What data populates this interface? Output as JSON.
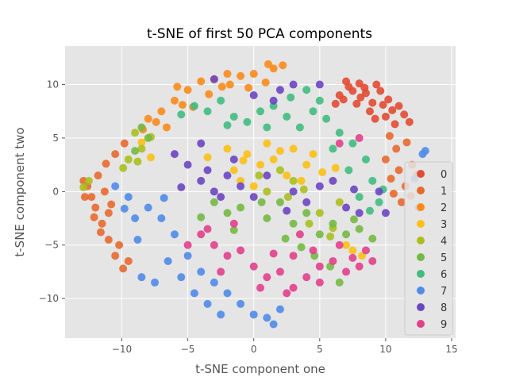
{
  "chart_data": {
    "type": "scatter",
    "title": "t-SNE of first 50 PCA components",
    "xlabel": "t-SNE component one",
    "ylabel": "t-SNE component two",
    "xlim": [
      -14.3,
      15.3
    ],
    "ylim": [
      -13.7,
      13.6
    ],
    "xticks": [
      -10,
      -5,
      0,
      5,
      10,
      15
    ],
    "xtick_labels": [
      "−10",
      "−5",
      "0",
      "5",
      "10",
      "15"
    ],
    "yticks": [
      -10,
      -5,
      0,
      5,
      10
    ],
    "ytick_labels": [
      "−10",
      "−5",
      "0",
      "5",
      "10"
    ],
    "grid": true,
    "background": "#e5e5e5",
    "legend_position": "right",
    "series": [
      {
        "name": "0",
        "color": "#e24a33",
        "points": [
          [
            6.5,
            9.0
          ],
          [
            7.2,
            9.8
          ],
          [
            8.0,
            10.1
          ],
          [
            8.5,
            9.2
          ],
          [
            9.0,
            8.3
          ],
          [
            9.6,
            9.4
          ],
          [
            10.2,
            8.6
          ],
          [
            7.8,
            8.2
          ],
          [
            6.8,
            8.6
          ],
          [
            8.8,
            7.5
          ],
          [
            10.5,
            7.6
          ],
          [
            11.0,
            8.0
          ],
          [
            7.5,
            9.4
          ],
          [
            9.3,
            10.0
          ],
          [
            8.1,
            8.8
          ],
          [
            10.0,
            7.0
          ],
          [
            6.2,
            8.2
          ],
          [
            9.8,
            8.1
          ],
          [
            11.4,
            7.2
          ],
          [
            10.7,
            6.3
          ],
          [
            9.2,
            6.8
          ],
          [
            8.4,
            9.7
          ],
          [
            7.0,
            10.3
          ],
          [
            11.8,
            6.5
          ]
        ]
      },
      {
        "name": "1",
        "color": "#e8692f",
        "points": [
          [
            -12.6,
            0.5
          ],
          [
            -12.0,
            -1.5
          ],
          [
            -11.5,
            -3.0
          ],
          [
            -11.0,
            -4.5
          ],
          [
            -10.5,
            -6.0
          ],
          [
            -11.8,
            1.5
          ],
          [
            -12.3,
            -0.5
          ],
          [
            -11.0,
            -2.0
          ],
          [
            -10.2,
            -5.0
          ],
          [
            -12.8,
            -0.5
          ],
          [
            -11.3,
            0.0
          ],
          [
            -10.5,
            3.5
          ],
          [
            -9.8,
            4.5
          ],
          [
            -9.5,
            -6.5
          ],
          [
            -11.6,
            -3.8
          ],
          [
            -12.9,
            1.0
          ],
          [
            -10.8,
            -1.2
          ],
          [
            -11.2,
            2.6
          ],
          [
            -9.9,
            -7.2
          ],
          [
            -12.1,
            -2.4
          ],
          [
            10.3,
            5.2
          ],
          [
            10.8,
            4.0
          ],
          [
            11.0,
            2.0
          ],
          [
            11.5,
            0.5
          ],
          [
            10.0,
            3.0
          ],
          [
            12.0,
            2.5
          ],
          [
            11.2,
            -1.0
          ],
          [
            10.6,
            -0.2
          ],
          [
            11.6,
            4.6
          ],
          [
            10.4,
            1.2
          ],
          [
            12.4,
            1.6
          ],
          [
            11.9,
            -0.4
          ]
        ]
      },
      {
        "name": "2",
        "color": "#fb8a19",
        "points": [
          [
            -5.0,
            9.5
          ],
          [
            -4.0,
            10.3
          ],
          [
            -3.0,
            10.5
          ],
          [
            -2.0,
            11.0
          ],
          [
            -1.0,
            10.8
          ],
          [
            0.0,
            11.0
          ],
          [
            1.5,
            11.5
          ],
          [
            -6.0,
            8.5
          ],
          [
            -7.0,
            7.5
          ],
          [
            -8.0,
            6.8
          ],
          [
            -6.6,
            6.0
          ],
          [
            -5.4,
            8.1
          ],
          [
            -3.4,
            9.1
          ],
          [
            -2.4,
            9.8
          ],
          [
            0.9,
            10.2
          ],
          [
            -4.6,
            7.9
          ],
          [
            -7.4,
            6.5
          ],
          [
            -8.4,
            5.8
          ],
          [
            2.2,
            11.8
          ],
          [
            -1.8,
            10.0
          ],
          [
            -0.4,
            9.7
          ],
          [
            -5.8,
            9.8
          ],
          [
            1.1,
            11.9
          ]
        ]
      },
      {
        "name": "3",
        "color": "#fbc015",
        "points": [
          [
            -1.5,
            2.0
          ],
          [
            -0.5,
            3.5
          ],
          [
            0.5,
            2.5
          ],
          [
            1.5,
            3.0
          ],
          [
            -2.0,
            4.0
          ],
          [
            3.0,
            4.0
          ],
          [
            4.0,
            2.5
          ],
          [
            -1.0,
            1.0
          ],
          [
            0.0,
            0.5
          ],
          [
            2.5,
            1.5
          ],
          [
            4.5,
            3.5
          ],
          [
            -3.5,
            3.2
          ],
          [
            5.2,
            1.8
          ],
          [
            1.0,
            4.5
          ],
          [
            -0.8,
            2.9
          ],
          [
            3.6,
            1.0
          ],
          [
            2.0,
            3.8
          ],
          [
            7.5,
            -5.5
          ],
          [
            8.2,
            -6.0
          ],
          [
            7.0,
            -5.0
          ],
          [
            -8.5,
            4.6
          ],
          [
            -7.8,
            3.2
          ],
          [
            6.2,
            2.2
          ]
        ]
      },
      {
        "name": "4",
        "color": "#aabf1e",
        "points": [
          [
            -9.0,
            5.5
          ],
          [
            -8.5,
            4.0
          ],
          [
            -9.5,
            3.0
          ],
          [
            -12.5,
            1.0
          ],
          [
            -7.8,
            5.1
          ],
          [
            2.0,
            2.0
          ],
          [
            3.0,
            1.0
          ],
          [
            1.0,
            0.0
          ],
          [
            5.0,
            -2.0
          ],
          [
            6.5,
            -1.0
          ],
          [
            4.2,
            -3.0
          ],
          [
            5.8,
            -4.2
          ],
          [
            -9.9,
            2.2
          ],
          [
            -8.8,
            2.8
          ],
          [
            2.6,
            -0.5
          ],
          [
            0.4,
            1.5
          ],
          [
            3.8,
            0.2
          ],
          [
            6.0,
            -3.4
          ],
          [
            -12.9,
            0.4
          ]
        ]
      },
      {
        "name": "5",
        "color": "#74b943",
        "points": [
          [
            -8.5,
            6.0
          ],
          [
            -8.0,
            5.0
          ],
          [
            -9.0,
            3.8
          ],
          [
            -3.0,
            -1.0
          ],
          [
            -2.0,
            -2.0
          ],
          [
            -1.0,
            -1.5
          ],
          [
            1.0,
            -2.5
          ],
          [
            2.0,
            -1.0
          ],
          [
            3.0,
            -3.0
          ],
          [
            4.0,
            -2.0
          ],
          [
            5.0,
            -4.0
          ],
          [
            6.0,
            -3.0
          ],
          [
            7.0,
            -4.0
          ],
          [
            8.0,
            -3.5
          ],
          [
            4.6,
            -6.0
          ],
          [
            5.8,
            -7.0
          ],
          [
            6.5,
            -8.5
          ],
          [
            -1.5,
            -3.6
          ],
          [
            0.6,
            -1.0
          ],
          [
            2.4,
            -4.4
          ],
          [
            7.6,
            -2.6
          ],
          [
            9.0,
            -4.4
          ],
          [
            -4.0,
            -2.4
          ],
          [
            3.6,
            -5.2
          ]
        ]
      },
      {
        "name": "6",
        "color": "#3fbd80",
        "points": [
          [
            -4.5,
            8.0
          ],
          [
            -3.5,
            7.5
          ],
          [
            -2.5,
            8.5
          ],
          [
            -1.5,
            7.0
          ],
          [
            -0.5,
            6.5
          ],
          [
            0.5,
            7.5
          ],
          [
            1.5,
            8.0
          ],
          [
            2.5,
            7.0
          ],
          [
            3.5,
            6.0
          ],
          [
            4.5,
            7.5
          ],
          [
            5.5,
            6.8
          ],
          [
            6.5,
            5.5
          ],
          [
            7.5,
            4.5
          ],
          [
            8.5,
            3.0
          ],
          [
            9.0,
            1.0
          ],
          [
            8.0,
            -0.5
          ],
          [
            9.5,
            -1.0
          ],
          [
            4.0,
            9.5
          ],
          [
            5.0,
            8.5
          ],
          [
            -5.5,
            7.2
          ],
          [
            6.0,
            4.0
          ],
          [
            2.8,
            8.8
          ],
          [
            7.2,
            2.0
          ],
          [
            1.0,
            6.0
          ],
          [
            -2.0,
            6.2
          ],
          [
            9.8,
            0.2
          ],
          [
            8.8,
            -1.8
          ]
        ]
      },
      {
        "name": "7",
        "color": "#4f8be8",
        "points": [
          [
            -10.5,
            0.5
          ],
          [
            -9.5,
            -0.5
          ],
          [
            -9.0,
            -2.5
          ],
          [
            -8.0,
            -1.5
          ],
          [
            -7.0,
            -2.5
          ],
          [
            -6.0,
            -4.0
          ],
          [
            -5.0,
            -6.0
          ],
          [
            -4.0,
            -7.5
          ],
          [
            -3.0,
            -8.5
          ],
          [
            -2.0,
            -9.5
          ],
          [
            -1.0,
            -10.5
          ],
          [
            0.0,
            -11.5
          ],
          [
            1.0,
            -11.8
          ],
          [
            2.0,
            -11.0
          ],
          [
            -4.5,
            -9.5
          ],
          [
            -3.5,
            -10.5
          ],
          [
            -5.5,
            -8.0
          ],
          [
            -6.5,
            -6.5
          ],
          [
            -8.5,
            -8.0
          ],
          [
            -7.5,
            -8.5
          ],
          [
            -2.5,
            -11.5
          ],
          [
            1.5,
            -12.4
          ],
          [
            -8.8,
            -4.5
          ],
          [
            -6.8,
            -0.6
          ],
          [
            -9.8,
            -1.6
          ],
          [
            12.8,
            3.5
          ],
          [
            12.2,
            1.2
          ],
          [
            13.0,
            3.8
          ],
          [
            12.5,
            -1.5
          ]
        ]
      },
      {
        "name": "8",
        "color": "#6c45c2",
        "points": [
          [
            -4.0,
            1.0
          ],
          [
            -3.0,
            0.0
          ],
          [
            -2.0,
            1.5
          ],
          [
            -1.0,
            0.5
          ],
          [
            0.0,
            -0.5
          ],
          [
            1.0,
            1.5
          ],
          [
            -5.0,
            2.5
          ],
          [
            -3.5,
            2.0
          ],
          [
            -2.5,
            -0.5
          ],
          [
            3.0,
            0.0
          ],
          [
            4.0,
            -1.0
          ],
          [
            5.0,
            0.5
          ],
          [
            6.0,
            1.0
          ],
          [
            7.0,
            -1.5
          ],
          [
            8.0,
            -2.0
          ],
          [
            -6.0,
            3.5
          ],
          [
            -4.0,
            4.5
          ],
          [
            2.0,
            9.5
          ],
          [
            3.0,
            10.0
          ],
          [
            -3.0,
            10.5
          ],
          [
            5.0,
            10.0
          ],
          [
            9.5,
            0.0
          ],
          [
            10.0,
            -2.0
          ],
          [
            0.0,
            9.0
          ],
          [
            1.5,
            8.5
          ],
          [
            -1.5,
            3.0
          ],
          [
            2.5,
            -1.8
          ],
          [
            7.6,
            0.2
          ],
          [
            -5.5,
            0.4
          ]
        ]
      },
      {
        "name": "9",
        "color": "#e23f8a",
        "points": [
          [
            -4.0,
            -4.0
          ],
          [
            -3.0,
            -5.0
          ],
          [
            -2.0,
            -6.0
          ],
          [
            -1.0,
            -5.5
          ],
          [
            0.0,
            -7.0
          ],
          [
            1.0,
            -8.0
          ],
          [
            2.0,
            -7.5
          ],
          [
            3.0,
            -6.0
          ],
          [
            4.0,
            -8.0
          ],
          [
            5.0,
            -7.0
          ],
          [
            6.0,
            -6.5
          ],
          [
            7.0,
            -7.5
          ],
          [
            8.0,
            -7.0
          ],
          [
            -5.0,
            -5.0
          ],
          [
            -3.5,
            -3.5
          ],
          [
            -2.5,
            -7.5
          ],
          [
            0.5,
            -9.0
          ],
          [
            2.5,
            -9.5
          ],
          [
            5.0,
            -8.5
          ],
          [
            4.5,
            -5.5
          ],
          [
            6.5,
            -5.0
          ],
          [
            8.5,
            -5.5
          ],
          [
            9.0,
            -6.5
          ],
          [
            3.5,
            -4.0
          ],
          [
            6.5,
            4.5
          ],
          [
            8.0,
            5.0
          ],
          [
            -1.5,
            -3.0
          ],
          [
            1.5,
            -5.8
          ],
          [
            3.0,
            -9.0
          ],
          [
            7.5,
            -6.2
          ]
        ]
      }
    ]
  }
}
